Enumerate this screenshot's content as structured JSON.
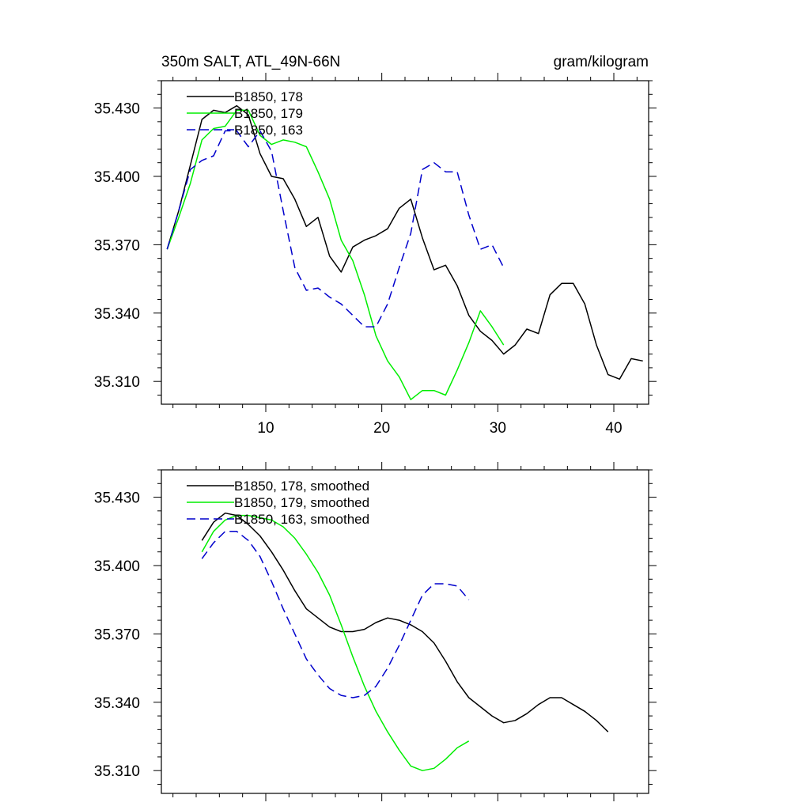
{
  "header": {
    "title_left": "350m SALT, ATL_49N-66N",
    "title_right": "gram/kilogram"
  },
  "colors": {
    "black": "#000000",
    "green": "#00ee00",
    "blue": "#0000cc"
  },
  "chart_data": [
    {
      "type": "line",
      "title": "",
      "xlim": [
        1,
        43
      ],
      "ylim": [
        35.3,
        35.442
      ],
      "x_ticks": [
        10,
        20,
        30,
        40
      ],
      "x_tick_labels": [
        "10",
        "20",
        "30",
        "40"
      ],
      "y_ticks": [
        35.31,
        35.34,
        35.37,
        35.4,
        35.43
      ],
      "y_tick_labels": [
        "35.310",
        "35.340",
        "35.370",
        "35.400",
        "35.430"
      ],
      "legend_position": "top-left",
      "series": [
        {
          "name": "B1850, 178",
          "color": "#000000",
          "dash": "solid",
          "x": [
            1.5,
            2.5,
            3.5,
            4.5,
            5.5,
            6.5,
            7.5,
            8.5,
            9.5,
            10.5,
            11.5,
            12.5,
            13.5,
            14.5,
            15.5,
            16.5,
            17.5,
            18.5,
            19.5,
            20.5,
            21.5,
            22.5,
            23.5,
            24.5,
            25.5,
            26.5,
            27.5,
            28.5,
            29.5,
            30.5,
            31.5,
            32.5,
            33.5,
            34.5,
            35.5,
            36.5,
            37.5,
            38.5,
            39.5,
            40.5,
            41.5,
            42.5
          ],
          "y": [
            35.368,
            35.385,
            35.405,
            35.425,
            35.429,
            35.428,
            35.431,
            35.427,
            35.41,
            35.4,
            35.399,
            35.39,
            35.378,
            35.382,
            35.365,
            35.358,
            35.369,
            35.372,
            35.374,
            35.377,
            35.386,
            35.39,
            35.373,
            35.359,
            35.361,
            35.352,
            35.339,
            35.332,
            35.328,
            35.322,
            35.326,
            35.333,
            35.331,
            35.348,
            35.353,
            35.353,
            35.344,
            35.326,
            35.313,
            35.311,
            35.32,
            35.319
          ]
        },
        {
          "name": "B1850, 179",
          "color": "#00ee00",
          "dash": "solid",
          "x": [
            1.5,
            2.5,
            3.5,
            4.5,
            5.5,
            6.5,
            7.5,
            8.5,
            9.5,
            10.5,
            11.5,
            12.5,
            13.5,
            14.5,
            15.5,
            16.5,
            17.5,
            18.5,
            19.5,
            20.5,
            21.5,
            22.5,
            23.5,
            24.5,
            25.5,
            26.5,
            27.5,
            28.5,
            29.5,
            30.5
          ],
          "y": [
            35.368,
            35.382,
            35.397,
            35.416,
            35.421,
            35.422,
            35.429,
            35.429,
            35.418,
            35.414,
            35.416,
            35.415,
            35.413,
            35.402,
            35.39,
            35.372,
            35.363,
            35.348,
            35.33,
            35.319,
            35.312,
            35.302,
            35.306,
            35.306,
            35.304,
            35.315,
            35.327,
            35.341,
            35.334,
            35.326
          ]
        },
        {
          "name": "B1850, 163",
          "color": "#0000cc",
          "dash": "dashed",
          "x": [
            1.5,
            2.5,
            3.5,
            4.5,
            5.5,
            6.5,
            7.5,
            8.5,
            9.5,
            10.5,
            11.5,
            12.5,
            13.5,
            14.5,
            15.5,
            16.5,
            17.5,
            18.5,
            19.5,
            20.5,
            21.5,
            22.5,
            23.5,
            24.5,
            25.5,
            26.5,
            27.5,
            28.5,
            29.5,
            30.5
          ],
          "y": [
            35.368,
            35.385,
            35.403,
            35.407,
            35.409,
            35.42,
            35.42,
            35.413,
            35.42,
            35.411,
            35.385,
            35.36,
            35.35,
            35.351,
            35.347,
            35.344,
            35.339,
            35.334,
            35.334,
            35.344,
            35.36,
            35.375,
            35.403,
            35.406,
            35.402,
            35.402,
            35.383,
            35.368,
            35.37,
            35.36
          ]
        }
      ]
    },
    {
      "type": "line",
      "title": "",
      "xlim": [
        1,
        43
      ],
      "ylim": [
        35.3,
        35.442
      ],
      "x_ticks": [
        10,
        20,
        30,
        40
      ],
      "x_tick_labels": [],
      "y_ticks": [
        35.31,
        35.34,
        35.37,
        35.4,
        35.43
      ],
      "y_tick_labels": [
        "35.310",
        "35.340",
        "35.370",
        "35.400",
        "35.430"
      ],
      "legend_position": "top-left",
      "series": [
        {
          "name": "B1850, 178, smoothed",
          "color": "#000000",
          "dash": "solid",
          "x": [
            4.5,
            5.5,
            6.5,
            7.5,
            8.5,
            9.5,
            10.5,
            11.5,
            12.5,
            13.5,
            14.5,
            15.5,
            16.5,
            17.5,
            18.5,
            19.5,
            20.5,
            21.5,
            22.5,
            23.5,
            24.5,
            25.5,
            26.5,
            27.5,
            28.5,
            29.5,
            30.5,
            31.5,
            32.5,
            33.5,
            34.5,
            35.5,
            36.5,
            37.5,
            38.5,
            39.5
          ],
          "y": [
            35.411,
            35.419,
            35.423,
            35.422,
            35.418,
            35.413,
            35.406,
            35.398,
            35.389,
            35.381,
            35.377,
            35.373,
            35.371,
            35.371,
            35.372,
            35.375,
            35.377,
            35.376,
            35.374,
            35.371,
            35.366,
            35.358,
            35.349,
            35.342,
            35.338,
            35.334,
            35.331,
            35.332,
            35.335,
            35.339,
            35.342,
            35.342,
            35.339,
            35.336,
            35.332,
            35.327
          ]
        },
        {
          "name": "B1850, 179, smoothed",
          "color": "#00ee00",
          "dash": "solid",
          "x": [
            4.5,
            5.5,
            6.5,
            7.5,
            8.5,
            9.5,
            10.5,
            11.5,
            12.5,
            13.5,
            14.5,
            15.5,
            16.5,
            17.5,
            18.5,
            19.5,
            20.5,
            21.5,
            22.5,
            23.5,
            24.5,
            25.5,
            26.5,
            27.5
          ],
          "y": [
            35.406,
            35.415,
            35.42,
            35.422,
            35.422,
            35.421,
            35.42,
            35.417,
            35.412,
            35.405,
            35.397,
            35.387,
            35.374,
            35.36,
            35.347,
            35.336,
            35.327,
            35.319,
            35.312,
            35.31,
            35.311,
            35.315,
            35.32,
            35.323
          ]
        },
        {
          "name": "B1850, 163, smoothed",
          "color": "#0000cc",
          "dash": "dashed",
          "x": [
            4.5,
            5.5,
            6.5,
            7.5,
            8.5,
            9.5,
            10.5,
            11.5,
            12.5,
            13.5,
            14.5,
            15.5,
            16.5,
            17.5,
            18.5,
            19.5,
            20.5,
            21.5,
            22.5,
            23.5,
            24.5,
            25.5,
            26.5,
            27.5
          ],
          "y": [
            35.403,
            35.41,
            35.415,
            35.415,
            35.411,
            35.404,
            35.393,
            35.381,
            35.37,
            35.359,
            35.352,
            35.346,
            35.343,
            35.342,
            35.343,
            35.347,
            35.355,
            35.365,
            35.376,
            35.387,
            35.392,
            35.392,
            35.391,
            35.385
          ]
        }
      ]
    }
  ]
}
